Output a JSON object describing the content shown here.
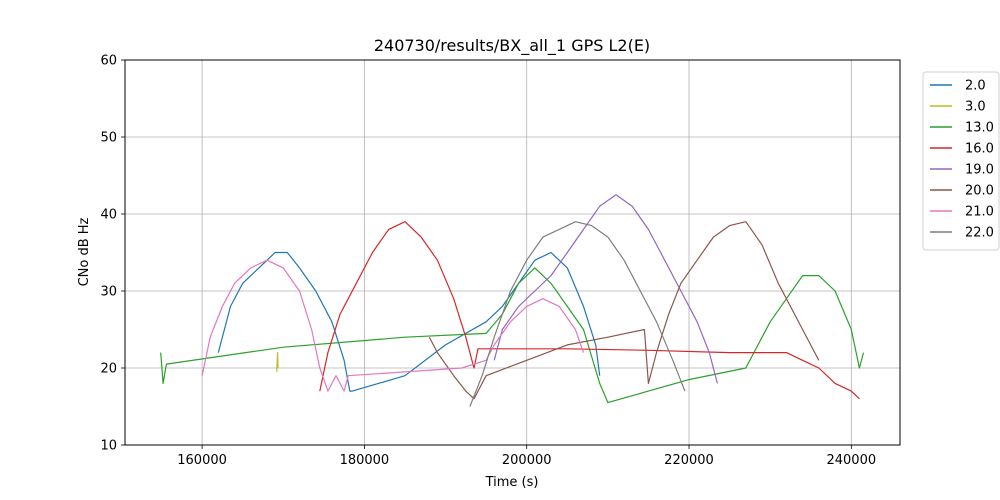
{
  "chart_data": {
    "type": "line",
    "title": "240730/results/BX_all_1 GPS L2(E)",
    "xlabel": "Time (s)",
    "ylabel": "CNo dB Hz",
    "xlim": [
      150500,
      246000
    ],
    "ylim": [
      10,
      60
    ],
    "xticks": [
      160000,
      180000,
      200000,
      220000,
      240000
    ],
    "yticks": [
      10,
      20,
      30,
      40,
      50,
      60
    ],
    "xtick_labels": [
      "160000",
      "180000",
      "200000",
      "220000",
      "240000"
    ],
    "ytick_labels": [
      "10",
      "20",
      "30",
      "40",
      "50",
      "60"
    ],
    "grid": true,
    "legend_position": "outside-top-right",
    "series": [
      {
        "name": "2.0",
        "color": "#1f77b4",
        "points": [
          [
            162000,
            22
          ],
          [
            163500,
            28
          ],
          [
            165000,
            31
          ],
          [
            167000,
            33
          ],
          [
            169000,
            35
          ],
          [
            170500,
            35
          ],
          [
            172000,
            33
          ],
          [
            174000,
            30
          ],
          [
            176000,
            26
          ],
          [
            177500,
            21
          ],
          [
            178200,
            17
          ],
          [
            178500,
            17
          ],
          [
            185000,
            19
          ],
          [
            190000,
            23
          ],
          [
            195000,
            26
          ],
          [
            197000,
            28
          ],
          [
            199000,
            31
          ],
          [
            201000,
            34
          ],
          [
            203000,
            35
          ],
          [
            205000,
            33
          ],
          [
            207000,
            28
          ],
          [
            208500,
            23
          ],
          [
            209000,
            19
          ]
        ]
      },
      {
        "name": "3.0",
        "color": "#bcbd22",
        "points": [
          [
            169200,
            19.5
          ],
          [
            169300,
            22
          ],
          [
            169350,
            20
          ]
        ]
      },
      {
        "name": "13.0",
        "color": "#2ca02c",
        "points": [
          [
            154900,
            22
          ],
          [
            155200,
            18
          ],
          [
            155600,
            20.5
          ],
          [
            170000,
            22.7
          ],
          [
            185000,
            24
          ],
          [
            195000,
            24.5
          ],
          [
            197000,
            27
          ],
          [
            199000,
            31
          ],
          [
            201000,
            33
          ],
          [
            203000,
            31
          ],
          [
            205000,
            28
          ],
          [
            207000,
            25
          ],
          [
            209000,
            18
          ],
          [
            210000,
            15.5
          ],
          [
            215000,
            17
          ],
          [
            220000,
            18.5
          ],
          [
            227000,
            20
          ],
          [
            228000,
            22
          ],
          [
            230000,
            26
          ],
          [
            232000,
            29
          ],
          [
            234000,
            32
          ],
          [
            236000,
            32
          ],
          [
            238000,
            30
          ],
          [
            240000,
            25
          ],
          [
            241000,
            20
          ],
          [
            241500,
            22
          ]
        ]
      },
      {
        "name": "16.0",
        "color": "#d62728",
        "points": [
          [
            174500,
            17
          ],
          [
            175500,
            22
          ],
          [
            177000,
            27
          ],
          [
            179000,
            31
          ],
          [
            181000,
            35
          ],
          [
            183000,
            38
          ],
          [
            185000,
            39
          ],
          [
            187000,
            37
          ],
          [
            189000,
            34
          ],
          [
            191000,
            29
          ],
          [
            192500,
            24
          ],
          [
            193500,
            20
          ],
          [
            194000,
            22.5
          ],
          [
            205000,
            22.5
          ],
          [
            215000,
            22.3
          ],
          [
            225000,
            22
          ],
          [
            232000,
            22
          ],
          [
            234000,
            21
          ],
          [
            236000,
            20
          ],
          [
            238000,
            18
          ],
          [
            240000,
            17
          ],
          [
            241000,
            16
          ]
        ]
      },
      {
        "name": "19.0",
        "color": "#9467bd",
        "points": [
          [
            196000,
            21
          ],
          [
            197000,
            25
          ],
          [
            199000,
            28
          ],
          [
            201000,
            30
          ],
          [
            203000,
            32
          ],
          [
            205000,
            35
          ],
          [
            207000,
            38
          ],
          [
            209000,
            41
          ],
          [
            211000,
            42.5
          ],
          [
            213000,
            41
          ],
          [
            215000,
            38
          ],
          [
            217000,
            34
          ],
          [
            219000,
            30
          ],
          [
            221000,
            26
          ],
          [
            222500,
            22
          ],
          [
            223500,
            18
          ]
        ]
      },
      {
        "name": "20.0",
        "color": "#8c564b",
        "points": [
          [
            188000,
            24
          ],
          [
            189000,
            22
          ],
          [
            191000,
            19
          ],
          [
            192500,
            17
          ],
          [
            193500,
            16
          ],
          [
            195000,
            19
          ],
          [
            200000,
            21
          ],
          [
            205000,
            23
          ],
          [
            210000,
            24
          ],
          [
            214500,
            25
          ],
          [
            215000,
            18
          ],
          [
            216000,
            22
          ],
          [
            217500,
            27
          ],
          [
            219000,
            31
          ],
          [
            221000,
            34
          ],
          [
            223000,
            37
          ],
          [
            225000,
            38.5
          ],
          [
            227000,
            39
          ],
          [
            229000,
            36
          ],
          [
            231000,
            31
          ],
          [
            233000,
            27
          ],
          [
            235000,
            23
          ],
          [
            236000,
            21
          ]
        ]
      },
      {
        "name": "21.0",
        "color": "#e377c2",
        "points": [
          [
            160000,
            19
          ],
          [
            161000,
            24
          ],
          [
            162500,
            28
          ],
          [
            164000,
            31
          ],
          [
            166000,
            33
          ],
          [
            168000,
            34
          ],
          [
            170000,
            33
          ],
          [
            172000,
            30
          ],
          [
            173500,
            25
          ],
          [
            174500,
            20
          ],
          [
            175500,
            17
          ],
          [
            176500,
            19
          ],
          [
            177500,
            17
          ],
          [
            178000,
            19
          ],
          [
            185000,
            19.5
          ],
          [
            192000,
            20
          ],
          [
            195000,
            21
          ],
          [
            196000,
            23
          ],
          [
            198000,
            26
          ],
          [
            200000,
            28
          ],
          [
            202000,
            29
          ],
          [
            204000,
            28
          ],
          [
            206000,
            25
          ],
          [
            207000,
            22
          ]
        ]
      },
      {
        "name": "22.0",
        "color": "#7f7f7f",
        "points": [
          [
            193000,
            15
          ],
          [
            194500,
            19
          ],
          [
            196000,
            24
          ],
          [
            198000,
            30
          ],
          [
            200000,
            34
          ],
          [
            202000,
            37
          ],
          [
            204000,
            38
          ],
          [
            206000,
            39
          ],
          [
            208000,
            38.5
          ],
          [
            210000,
            37
          ],
          [
            212000,
            34
          ],
          [
            214000,
            30
          ],
          [
            216000,
            26
          ],
          [
            218000,
            21
          ],
          [
            219500,
            17
          ]
        ]
      }
    ]
  }
}
